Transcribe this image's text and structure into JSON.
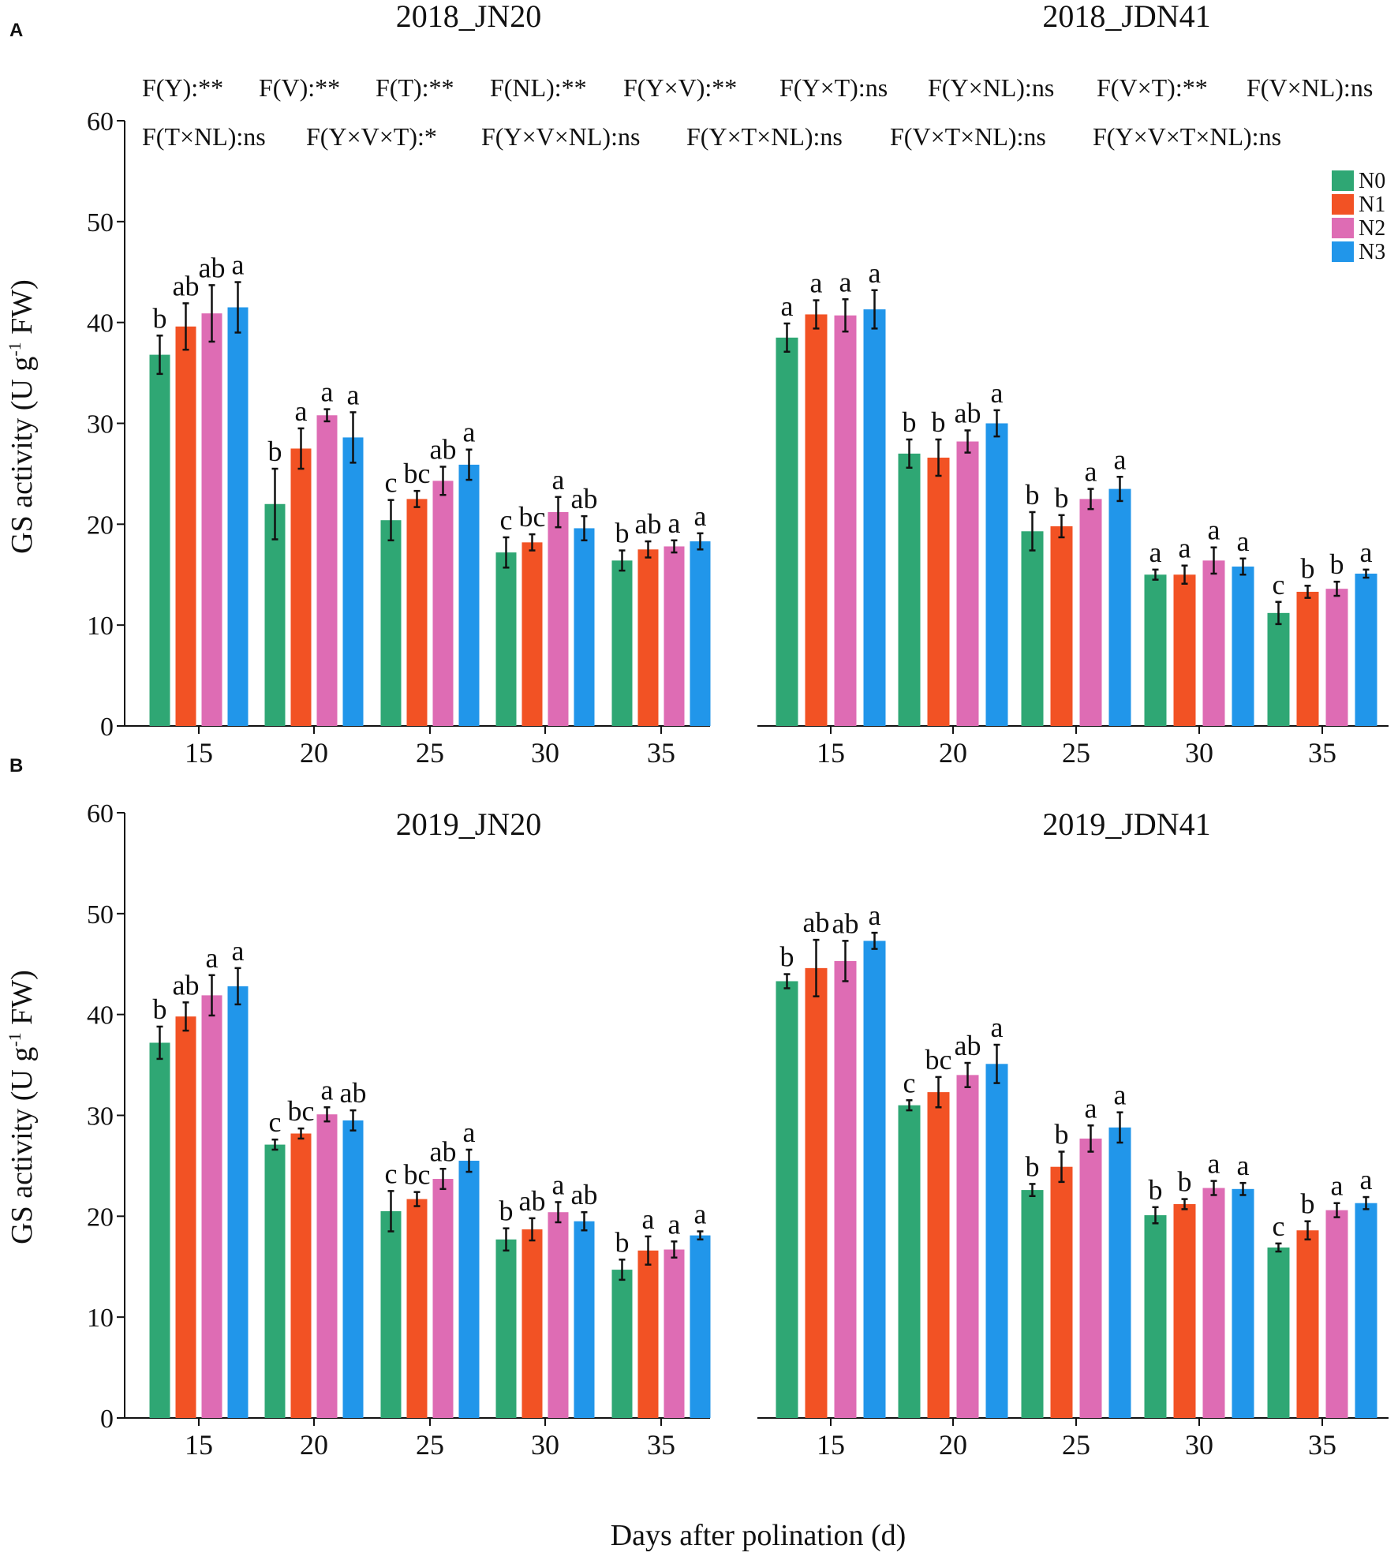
{
  "figure": {
    "panel_letters": [
      "A",
      "B"
    ],
    "y_label": "GS activity (U g",
    "y_label_sup": "-1",
    "y_label_tail": " FW)",
    "x_label": "Days after polination (d)",
    "anova_row1": [
      "F(Y):**",
      "F(V):**",
      "F(T):**",
      "F(NL):**",
      "F(Y×V):**",
      "F(Y×T):ns",
      "F(Y×NL):ns",
      "F(V×T):**",
      "F(V×NL):ns"
    ],
    "anova_row2": [
      "F(T×NL):ns",
      "F(Y×V×T):*",
      "F(Y×V×NL):ns",
      "F(Y×T×NL):ns",
      "F(V×T×NL):ns",
      "F(Y×V×T×NL):ns"
    ]
  },
  "chart_data": [
    {
      "type": "bar",
      "title": "2018_JN20",
      "xlabel": "Days after polination (d)",
      "ylabel": "GS activity (U g-1 FW)",
      "ylim": [
        0,
        60
      ],
      "yticks": [
        "0",
        "10",
        "20",
        "30",
        "40",
        "50",
        "60"
      ],
      "categories": [
        "15",
        "20",
        "25",
        "30",
        "35"
      ],
      "series": [
        {
          "name": "N0",
          "color": "#2FA774",
          "values": [
            36.8,
            22.0,
            20.4,
            17.2,
            16.4
          ],
          "errors": [
            1.9,
            3.5,
            2.0,
            1.5,
            1.0
          ],
          "letters": [
            "b",
            "b",
            "c",
            "c",
            "b"
          ]
        },
        {
          "name": "N1",
          "color": "#F25224",
          "values": [
            39.6,
            27.5,
            22.5,
            18.2,
            17.5
          ],
          "errors": [
            2.3,
            2.0,
            0.8,
            0.8,
            0.8
          ],
          "letters": [
            "ab",
            "a",
            "bc",
            "bc",
            "ab"
          ]
        },
        {
          "name": "N2",
          "color": "#DE6CB4",
          "values": [
            40.9,
            30.8,
            24.3,
            21.2,
            17.8
          ],
          "errors": [
            2.8,
            0.6,
            1.4,
            1.5,
            0.6
          ],
          "letters": [
            "ab",
            "a",
            "ab",
            "a",
            "a"
          ]
        },
        {
          "name": "N3",
          "color": "#2196EA",
          "values": [
            41.5,
            28.6,
            25.9,
            19.6,
            18.3
          ],
          "errors": [
            2.5,
            2.5,
            1.5,
            1.2,
            0.8
          ],
          "letters": [
            "a",
            "a",
            "a",
            "ab",
            "a"
          ]
        }
      ]
    },
    {
      "type": "bar",
      "title": "2018_JDN41",
      "xlabel": "Days after polination (d)",
      "ylabel": "GS activity (U g-1 FW)",
      "ylim": [
        0,
        60
      ],
      "categories": [
        "15",
        "20",
        "25",
        "30",
        "35"
      ],
      "legend": "top-right",
      "series": [
        {
          "name": "N0",
          "color": "#2FA774",
          "values": [
            38.5,
            27.0,
            19.3,
            15.0,
            11.2
          ],
          "errors": [
            1.4,
            1.4,
            1.9,
            0.5,
            1.1
          ],
          "letters": [
            "a",
            "b",
            "b",
            "a",
            "c"
          ]
        },
        {
          "name": "N1",
          "color": "#F25224",
          "values": [
            40.8,
            26.6,
            19.8,
            15.0,
            13.3
          ],
          "errors": [
            1.4,
            1.8,
            1.1,
            0.9,
            0.6
          ],
          "letters": [
            "a",
            "b",
            "b",
            "a",
            "b"
          ]
        },
        {
          "name": "N2",
          "color": "#DE6CB4",
          "values": [
            40.7,
            28.2,
            22.5,
            16.4,
            13.6
          ],
          "errors": [
            1.6,
            1.1,
            1.0,
            1.3,
            0.7
          ],
          "letters": [
            "a",
            "ab",
            "a",
            "a",
            "b"
          ]
        },
        {
          "name": "N3",
          "color": "#2196EA",
          "values": [
            41.3,
            30.0,
            23.5,
            15.8,
            15.1
          ],
          "errors": [
            1.9,
            1.3,
            1.2,
            0.8,
            0.4
          ],
          "letters": [
            "a",
            "a",
            "a",
            "a",
            "a"
          ]
        }
      ]
    },
    {
      "type": "bar",
      "title": "2019_JN20",
      "xlabel": "Days after polination (d)",
      "ylabel": "GS activity (U g-1 FW)",
      "ylim": [
        0,
        60
      ],
      "yticks": [
        "0",
        "10",
        "20",
        "30",
        "40",
        "50",
        "60"
      ],
      "categories": [
        "15",
        "20",
        "25",
        "30",
        "35"
      ],
      "series": [
        {
          "name": "N0",
          "color": "#2FA774",
          "values": [
            37.2,
            27.1,
            20.5,
            17.7,
            14.7
          ],
          "errors": [
            1.6,
            0.5,
            2.0,
            1.1,
            1.0
          ],
          "letters": [
            "b",
            "c",
            "c",
            "b",
            "b"
          ]
        },
        {
          "name": "N1",
          "color": "#F25224",
          "values": [
            39.8,
            28.2,
            21.7,
            18.7,
            16.6
          ],
          "errors": [
            1.4,
            0.5,
            0.7,
            1.1,
            1.4
          ],
          "letters": [
            "ab",
            "bc",
            "bc",
            "ab",
            "a"
          ]
        },
        {
          "name": "N2",
          "color": "#DE6CB4",
          "values": [
            41.9,
            30.1,
            23.7,
            20.4,
            16.7
          ],
          "errors": [
            2.0,
            0.7,
            1.0,
            1.0,
            0.8
          ],
          "letters": [
            "a",
            "a",
            "ab",
            "a",
            "a"
          ]
        },
        {
          "name": "N3",
          "color": "#2196EA",
          "values": [
            42.8,
            29.5,
            25.5,
            19.5,
            18.1
          ],
          "errors": [
            1.8,
            1.0,
            1.1,
            0.9,
            0.4
          ],
          "letters": [
            "a",
            "ab",
            "a",
            "ab",
            "a"
          ]
        }
      ]
    },
    {
      "type": "bar",
      "title": "2019_JDN41",
      "xlabel": "Days after polination (d)",
      "ylabel": "GS activity (U g-1 FW)",
      "ylim": [
        0,
        60
      ],
      "categories": [
        "15",
        "20",
        "25",
        "30",
        "35"
      ],
      "series": [
        {
          "name": "N0",
          "color": "#2FA774",
          "values": [
            43.3,
            31.0,
            22.6,
            20.1,
            16.9
          ],
          "errors": [
            0.7,
            0.5,
            0.6,
            0.8,
            0.4
          ],
          "letters": [
            "b",
            "c",
            "b",
            "b",
            "c"
          ]
        },
        {
          "name": "N1",
          "color": "#F25224",
          "values": [
            44.6,
            32.3,
            24.9,
            21.2,
            18.6
          ],
          "errors": [
            2.8,
            1.5,
            1.5,
            0.5,
            0.9
          ],
          "letters": [
            "ab",
            "bc",
            "b",
            "b",
            "b"
          ]
        },
        {
          "name": "N2",
          "color": "#DE6CB4",
          "values": [
            45.3,
            34.0,
            27.7,
            22.8,
            20.6
          ],
          "errors": [
            2.0,
            1.2,
            1.3,
            0.7,
            0.7
          ],
          "letters": [
            "ab",
            "ab",
            "a",
            "a",
            "a"
          ]
        },
        {
          "name": "N3",
          "color": "#2196EA",
          "values": [
            47.3,
            35.1,
            28.8,
            22.7,
            21.3
          ],
          "errors": [
            0.8,
            1.9,
            1.5,
            0.6,
            0.6
          ],
          "letters": [
            "a",
            "a",
            "a",
            "a",
            "a"
          ]
        }
      ]
    }
  ]
}
